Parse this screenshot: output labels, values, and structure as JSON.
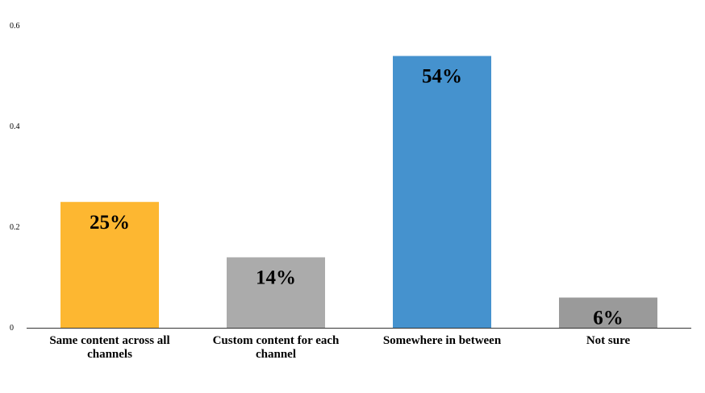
{
  "chart_data": {
    "type": "bar",
    "categories": [
      [
        "Same content across all",
        "channels"
      ],
      [
        "Custom content for each",
        "channel"
      ],
      [
        "Somewhere in between"
      ],
      [
        "Not sure"
      ]
    ],
    "values": [
      0.25,
      0.14,
      0.54,
      0.06
    ],
    "data_labels": [
      "25%",
      "14%",
      "54%",
      "6%"
    ],
    "colors": [
      "#FDB731",
      "#ABABAB",
      "#4592CE",
      "#9A9A9A"
    ],
    "y_ticks": [
      {
        "value": 0,
        "label": "0"
      },
      {
        "value": 0.2,
        "label": "0.2"
      },
      {
        "value": 0.4,
        "label": "0.4"
      },
      {
        "value": 0.6,
        "label": "0.6"
      }
    ],
    "ylim": [
      0,
      0.6
    ],
    "grid": false,
    "legend": "none",
    "title": "",
    "xlabel": "",
    "ylabel": ""
  }
}
